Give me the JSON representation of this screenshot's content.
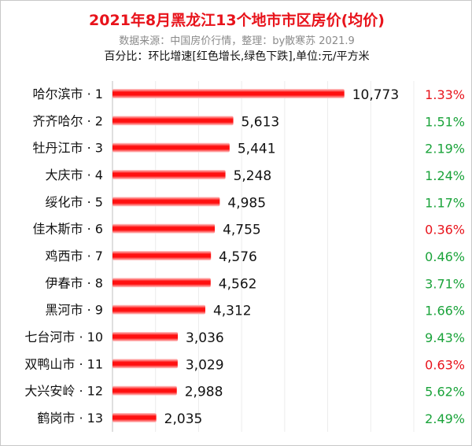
{
  "chart_data": {
    "type": "bar",
    "orientation": "horizontal",
    "title": "2021年8月黑龙江13个地市市区房价(均价)",
    "subtitle": "数据来源：中国房价行情，整理：by散寒苏 2021.9",
    "note": "百分比：环比增速[红色增长,绿色下跌],单位:元/平方米",
    "categories": [
      "哈尔滨市 · 1",
      "齐齐哈尔 · 2",
      "牡丹江市 · 3",
      "大庆市 · 4",
      "绥化市 · 5",
      "佳木斯市 · 6",
      "鸡西市 · 7",
      "伊春市 · 8",
      "黑河市 · 9",
      "七台河市 · 10",
      "双鸭山市 · 11",
      "大兴安岭 · 12",
      "鹤岗市 · 13"
    ],
    "values": [
      10773,
      5613,
      5441,
      5248,
      4985,
      4755,
      4576,
      4562,
      4312,
      3036,
      3029,
      2988,
      2035
    ],
    "value_labels": [
      "10,773",
      "5,613",
      "5,441",
      "5,248",
      "4,985",
      "4,755",
      "4,576",
      "4,562",
      "4,312",
      "3,036",
      "3,029",
      "2,988",
      "2,035"
    ],
    "pct_change": [
      "1.33%",
      "1.51%",
      "2.19%",
      "1.24%",
      "1.17%",
      "0.36%",
      "0.46%",
      "3.71%",
      "1.66%",
      "9.43%",
      "0.63%",
      "5.62%",
      "2.49%"
    ],
    "pct_colors": [
      "#e8131b",
      "#1aa33a",
      "#1aa33a",
      "#1aa33a",
      "#1aa33a",
      "#e8131b",
      "#1aa33a",
      "#1aa33a",
      "#1aa33a",
      "#1aa33a",
      "#e8131b",
      "#1aa33a",
      "#1aa33a"
    ],
    "bar_color": "#ff1010",
    "xlim": [
      0,
      14000
    ],
    "grid": true
  }
}
